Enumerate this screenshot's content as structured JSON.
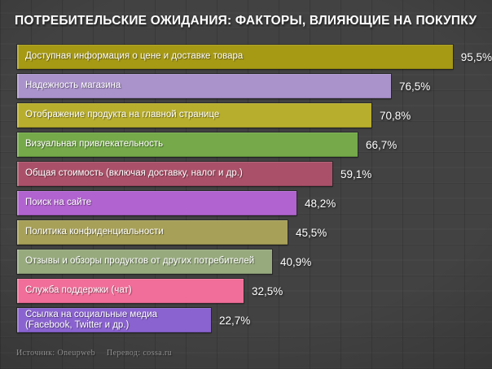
{
  "title": "ПОТРЕБИТЕЛЬСКИЕ ОЖИДАНИЯ: ФАКТОРЫ, ВЛИЯЮЩИЕ НА ПОКУПКУ",
  "footer": {
    "source": "Источник: Oneupweb",
    "translation": "Перевод: cossa.ru"
  },
  "colors": {
    "background": "#424242",
    "grid_line": "#3a3a3a",
    "title_text": "#ffffff",
    "bar_label_text": "#ffffff",
    "value_text": "#ffffff",
    "footer_text": "#8f8f8f"
  },
  "chart_data": {
    "type": "bar",
    "orientation": "horizontal",
    "title": "ПОТРЕБИТЕЛЬСКИЕ ОЖИДАНИЯ: ФАКТОРЫ, ВЛИЯЮЩИЕ НА ПОКУПКУ",
    "categories": [
      "Доступная информация о цене и доставке товара",
      "Надежность магазина",
      "Отображение продукта на главной странице",
      "Визуальная привлекательность",
      "Общая стоимость (включая доставку, налог и др.)",
      "Поиск на сайте",
      "Политика конфиденциальности",
      "Отзывы и обзоры продуктов от других потребителей",
      "Служба поддержки (чат)",
      "Ссылка на социальные медиа (Facebook, Twitter и др.)"
    ],
    "values": [
      95.5,
      76.5,
      70.8,
      66.7,
      59.1,
      48.2,
      45.5,
      40.9,
      32.5,
      22.7
    ],
    "value_labels": [
      "95,5%",
      "76,5%",
      "70,8%",
      "66,7%",
      "59,1%",
      "48,2%",
      "45,5%",
      "40,9%",
      "32,5%",
      "22,7%"
    ],
    "bar_colors": [
      "#a69914",
      "#aa92cb",
      "#b8ae2d",
      "#75a94a",
      "#aa5169",
      "#b163cf",
      "#a7a059",
      "#97aa7e",
      "#f06e99",
      "#8a63d0"
    ],
    "xlim": [
      0,
      100
    ],
    "grid": false,
    "legend": false
  }
}
